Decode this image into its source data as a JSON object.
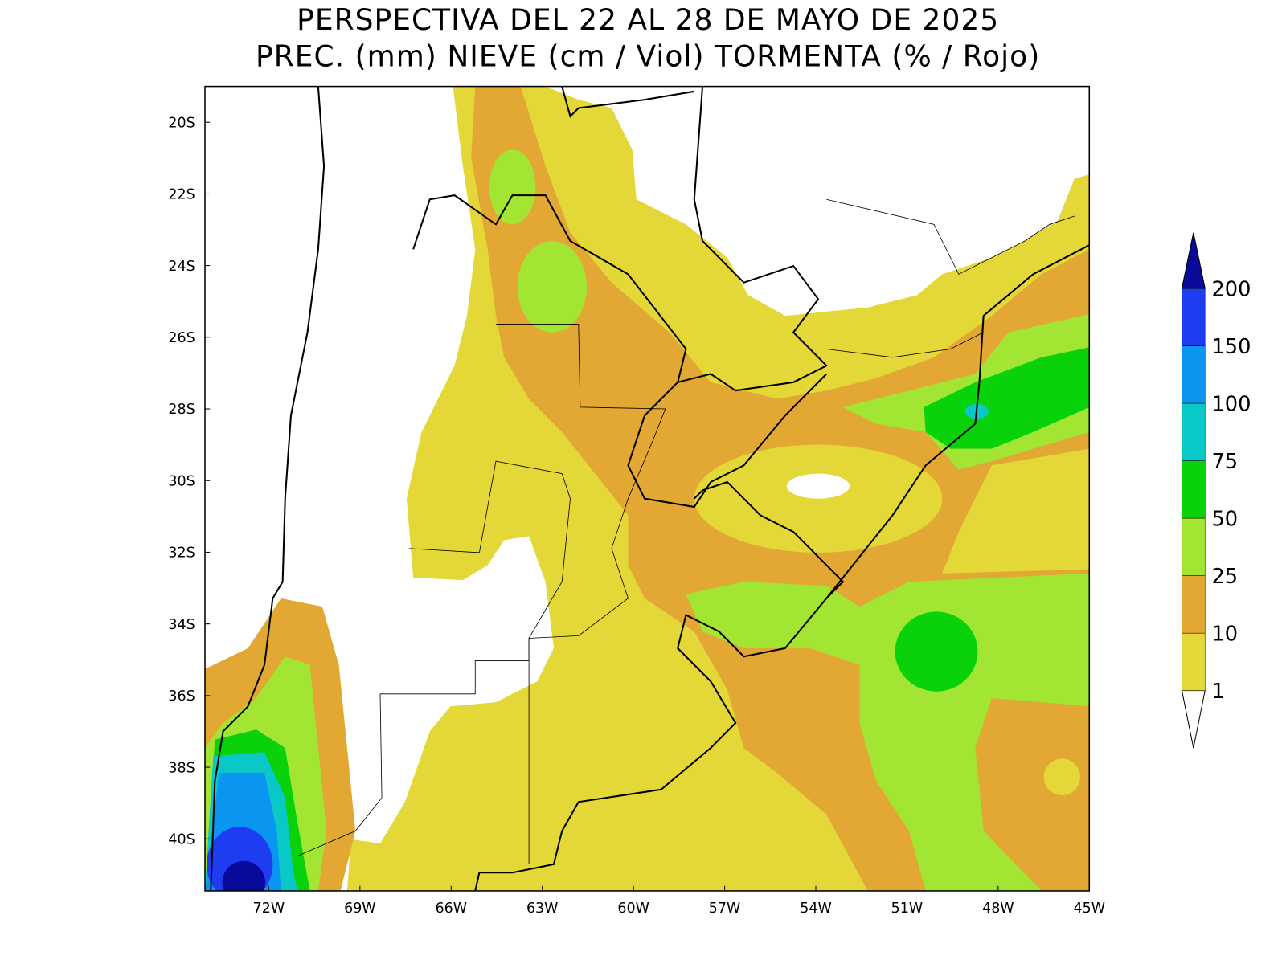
{
  "title": "PERSPECTIVA DEL 22 AL 28 DE MAYO DE 2025",
  "subtitle": "PREC. (mm) NIEVE (cm / Viol) TORMENTA (% / Rojo)",
  "map": {
    "xlim": [
      -74.1,
      -45
    ],
    "ylim": [
      -41.45,
      -19
    ],
    "xticks": [
      {
        "value": -72,
        "label": "72W"
      },
      {
        "value": -69,
        "label": "69W"
      },
      {
        "value": -66,
        "label": "66W"
      },
      {
        "value": -63,
        "label": "63W"
      },
      {
        "value": -60,
        "label": "60W"
      },
      {
        "value": -57,
        "label": "57W"
      },
      {
        "value": -54,
        "label": "54W"
      },
      {
        "value": -51,
        "label": "51W"
      },
      {
        "value": -48,
        "label": "48W"
      },
      {
        "value": -45,
        "label": "45W"
      }
    ],
    "yticks": [
      {
        "value": -20,
        "label": "20S"
      },
      {
        "value": -22,
        "label": "22S"
      },
      {
        "value": -24,
        "label": "24S"
      },
      {
        "value": -26,
        "label": "26S"
      },
      {
        "value": -28,
        "label": "28S"
      },
      {
        "value": -30,
        "label": "30S"
      },
      {
        "value": -32,
        "label": "32S"
      },
      {
        "value": -34,
        "label": "34S"
      },
      {
        "value": -36,
        "label": "36S"
      },
      {
        "value": -38,
        "label": "38S"
      },
      {
        "value": -40,
        "label": "40S"
      }
    ]
  },
  "colorbar": {
    "levels": [
      1,
      10,
      25,
      50,
      75,
      100,
      150,
      200
    ],
    "colors": [
      "#ffffff",
      "#e3d838",
      "#e3a834",
      "#a2e633",
      "#0ad20a",
      "#0ac8c8",
      "#0a96f0",
      "#1e3cf0",
      "#0a0a9a"
    ]
  }
}
